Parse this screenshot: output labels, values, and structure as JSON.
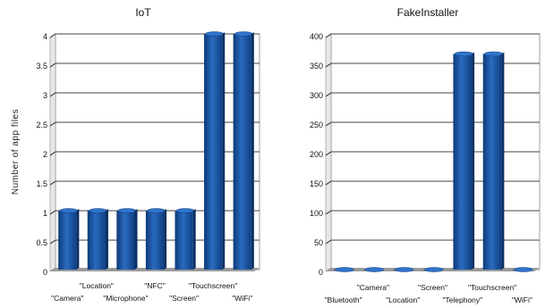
{
  "chart_data": [
    {
      "type": "bar",
      "title": "IoT",
      "ylabel": "Number of app files",
      "ylim": [
        0,
        4
      ],
      "yticks": [
        "0",
        "0.5",
        "1",
        "1.5",
        "2",
        "2.5",
        "3",
        "3.5",
        "4"
      ],
      "categories": [
        "\"Camera\"",
        "\"Location\"",
        "\"Microphone\"",
        "\"NFC\"",
        "\"Screen\"",
        "\"Touchscreen\"",
        "\"WiFi\""
      ],
      "values": [
        1,
        1,
        1,
        1,
        1,
        4,
        4
      ],
      "bar_color": "#1f5aa6",
      "grid": true
    },
    {
      "type": "bar",
      "title": "FakeInstaller",
      "ylabel": "",
      "ylim": [
        0,
        400
      ],
      "yticks": [
        "0",
        "50",
        "100",
        "150",
        "200",
        "250",
        "300",
        "350",
        "400"
      ],
      "categories": [
        "\"Bluetooth\"",
        "\"Camera\"",
        "\"Location\"",
        "\"Screen\"",
        "\"Telephony\"",
        "\"Touchscreen\"",
        "\"WiFi\""
      ],
      "values": [
        0,
        0,
        0,
        0,
        366,
        366,
        0
      ],
      "bar_color": "#1f5aa6",
      "grid": true
    }
  ]
}
